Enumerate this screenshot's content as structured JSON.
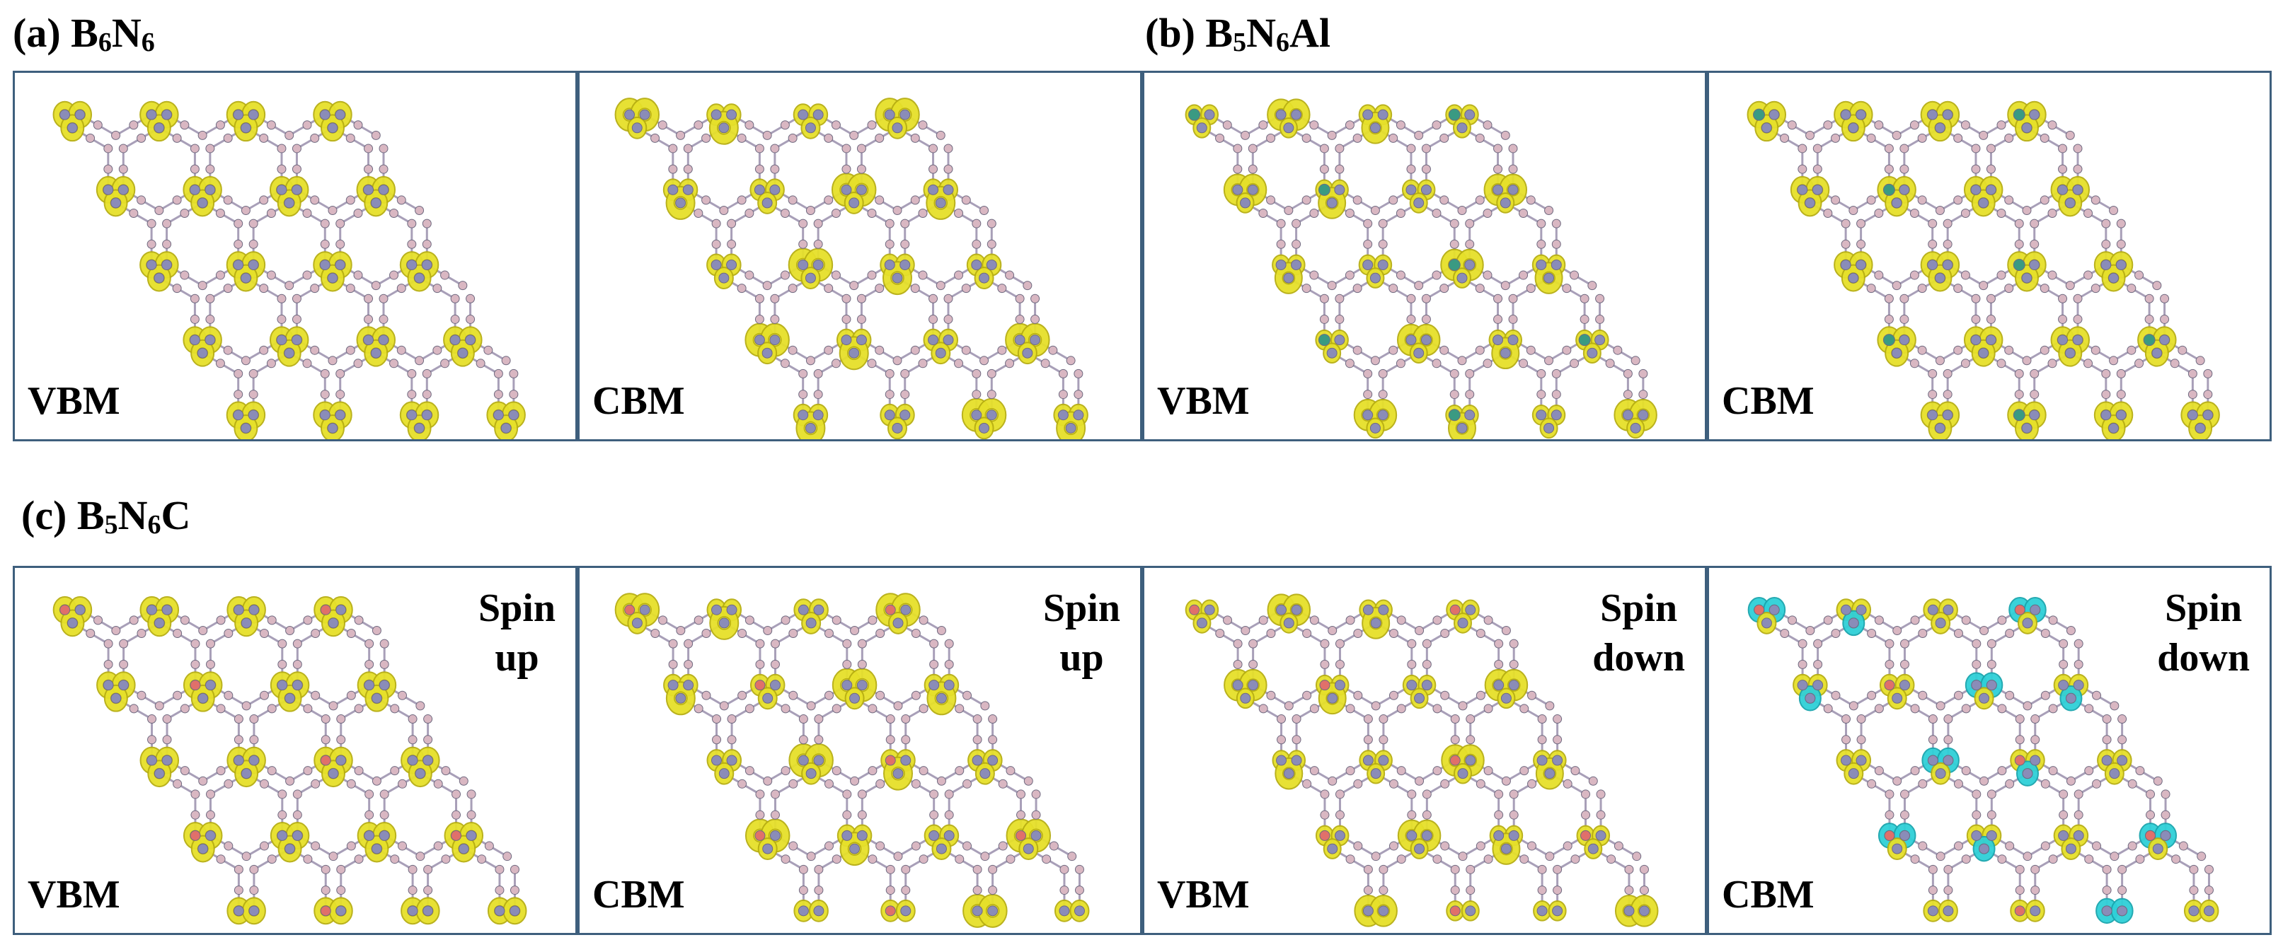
{
  "figure": {
    "sections": [
      {
        "id": "a",
        "prefix": "(a) ",
        "parts": [
          [
            "B",
            ""
          ],
          [
            "6",
            "sub"
          ],
          [
            "N",
            ""
          ],
          [
            "6",
            "sub"
          ]
        ]
      },
      {
        "id": "b",
        "prefix": "(b) ",
        "parts": [
          [
            "B",
            ""
          ],
          [
            "5",
            "sub"
          ],
          [
            "N",
            ""
          ],
          [
            "6",
            "sub"
          ],
          [
            "Al",
            ""
          ]
        ]
      },
      {
        "id": "c",
        "prefix": "(c) ",
        "parts": [
          [
            "B",
            ""
          ],
          [
            "5",
            "sub"
          ],
          [
            "N",
            ""
          ],
          [
            "6",
            "sub"
          ],
          [
            "C",
            ""
          ]
        ]
      }
    ],
    "panels": [
      {
        "id": "a-vbm",
        "band": "VBM",
        "spin": "",
        "dopant": "none",
        "pattern": "a"
      },
      {
        "id": "a-cbm",
        "band": "CBM",
        "spin": "",
        "dopant": "none",
        "pattern": "b"
      },
      {
        "id": "b-vbm",
        "band": "VBM",
        "spin": "",
        "dopant": "Al",
        "pattern": "c"
      },
      {
        "id": "b-cbm",
        "band": "CBM",
        "spin": "",
        "dopant": "Al",
        "pattern": "a"
      },
      {
        "id": "c-vbm-up",
        "band": "VBM",
        "spin": "Spin\nup",
        "dopant": "C",
        "pattern": "a"
      },
      {
        "id": "c-cbm-up",
        "band": "CBM",
        "spin": "Spin\nup",
        "dopant": "C",
        "pattern": "b"
      },
      {
        "id": "c-vbm-down",
        "band": "VBM",
        "spin": "Spin\ndown",
        "dopant": "C",
        "pattern": "c"
      },
      {
        "id": "c-cbm-down",
        "band": "CBM",
        "spin": "Spin\ndown",
        "dopant": "C",
        "pattern": "cyan"
      }
    ],
    "colors": {
      "boron": "#d9b7c2",
      "nitrogen": "#8a8cb8",
      "aluminum": "#3a9a82",
      "carbon": "#e0706a",
      "bond": "#a89fb8",
      "isosurface_positive": "#e6e02a",
      "isosurface_positive_edge": "#b7ae12",
      "isosurface_negative": "#2fd0d8",
      "frame": "#3e5f7d"
    }
  }
}
